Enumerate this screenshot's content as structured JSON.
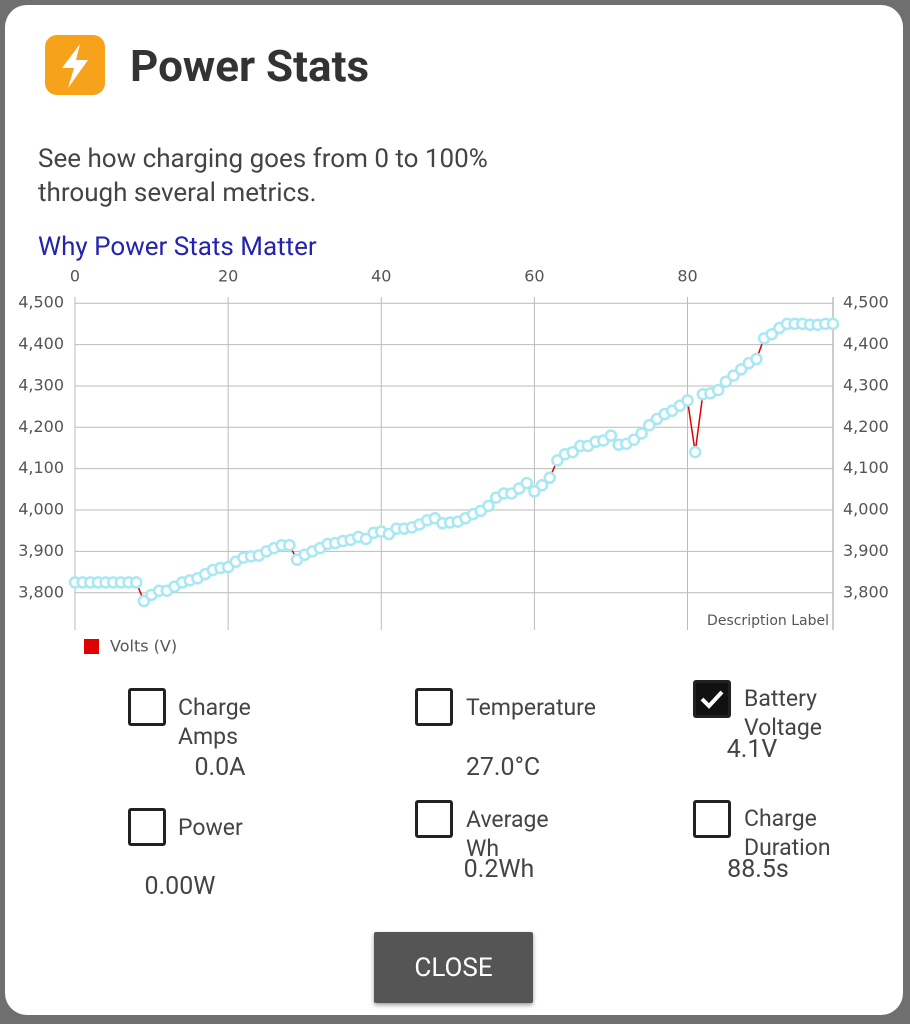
{
  "header": {
    "title": "Power Stats"
  },
  "description": "See how charging goes from 0 to 100% through several metrics.",
  "link": "Why Power Stats Matter",
  "chart_data": {
    "type": "line",
    "x": [
      0,
      1,
      2,
      3,
      4,
      5,
      6,
      7,
      8,
      9,
      10,
      11,
      12,
      13,
      14,
      15,
      16,
      17,
      18,
      19,
      20,
      21,
      22,
      23,
      24,
      25,
      26,
      27,
      28,
      29,
      30,
      31,
      32,
      33,
      34,
      35,
      36,
      37,
      38,
      39,
      40,
      41,
      42,
      43,
      44,
      45,
      46,
      47,
      48,
      49,
      50,
      51,
      52,
      53,
      54,
      55,
      56,
      57,
      58,
      59,
      60,
      61,
      62,
      63,
      64,
      65,
      66,
      67,
      68,
      69,
      70,
      71,
      72,
      73,
      74,
      75,
      76,
      77,
      78,
      79,
      80,
      81,
      82,
      83,
      84,
      85,
      86,
      87,
      88,
      89,
      90,
      91,
      92,
      93,
      94,
      95,
      96,
      97,
      98,
      99
    ],
    "series": [
      {
        "name": "Volts (V)",
        "color": "#e00000",
        "marker_color": "#a8e8f2",
        "values": [
          3825,
          3825,
          3825,
          3825,
          3825,
          3825,
          3825,
          3825,
          3825,
          3780,
          3795,
          3805,
          3805,
          3815,
          3825,
          3830,
          3835,
          3845,
          3855,
          3860,
          3862,
          3875,
          3885,
          3888,
          3890,
          3900,
          3908,
          3915,
          3915,
          3880,
          3892,
          3900,
          3908,
          3918,
          3920,
          3925,
          3928,
          3935,
          3930,
          3945,
          3948,
          3942,
          3955,
          3955,
          3958,
          3965,
          3975,
          3980,
          3968,
          3970,
          3972,
          3980,
          3990,
          3998,
          4010,
          4030,
          4040,
          4040,
          4052,
          4065,
          4045,
          4060,
          4078,
          4120,
          4135,
          4140,
          4155,
          4155,
          4165,
          4168,
          4180,
          4158,
          4160,
          4170,
          4185,
          4205,
          4220,
          4232,
          4240,
          4252,
          4265,
          4140,
          4280,
          4282,
          4290,
          4310,
          4325,
          4340,
          4355,
          4365,
          4415,
          4425,
          4440,
          4450,
          4450,
          4450,
          4448,
          4448,
          4450,
          4450
        ]
      }
    ],
    "xlim": [
      0,
      99
    ],
    "xticks": [
      0,
      20,
      40,
      60,
      80
    ],
    "ylim": [
      3710,
      4515
    ],
    "yticks": [
      {
        "value": 3800,
        "label": "3,800"
      },
      {
        "value": 3900,
        "label": "3,900"
      },
      {
        "value": 4000,
        "label": "4,000"
      },
      {
        "value": 4100,
        "label": "4,100"
      },
      {
        "value": 4200,
        "label": "4,200"
      },
      {
        "value": 4300,
        "label": "4,300"
      },
      {
        "value": 4400,
        "label": "4,400"
      },
      {
        "value": 4500,
        "label": "4,500"
      }
    ],
    "y2lim": [
      3710,
      4515
    ],
    "y2ticks": [
      {
        "value": 3800,
        "label": "3,800"
      },
      {
        "value": 3900,
        "label": "3,900"
      },
      {
        "value": 4000,
        "label": "4,000"
      },
      {
        "value": 4100,
        "label": "4,100"
      },
      {
        "value": 4200,
        "label": "4,200"
      },
      {
        "value": 4300,
        "label": "4,300"
      },
      {
        "value": 4400,
        "label": "4,400"
      },
      {
        "value": 4500,
        "label": "4,500"
      }
    ],
    "grid": true,
    "description_label": "Description Label",
    "legend": "bottom-left"
  },
  "metrics": [
    {
      "label": "Charge Amps",
      "value": "0.0A",
      "checked": false
    },
    {
      "label": "Temperature",
      "value": "27.0°C",
      "checked": false
    },
    {
      "label": "Battery Voltage",
      "value": "4.1V",
      "checked": true
    },
    {
      "label": "Power",
      "value": "0.00W",
      "checked": false
    },
    {
      "label": "Average Wh",
      "value": "0.2Wh",
      "checked": false
    },
    {
      "label": "Charge Duration",
      "value": "88.5s",
      "checked": false
    }
  ],
  "button": "CLOSE"
}
